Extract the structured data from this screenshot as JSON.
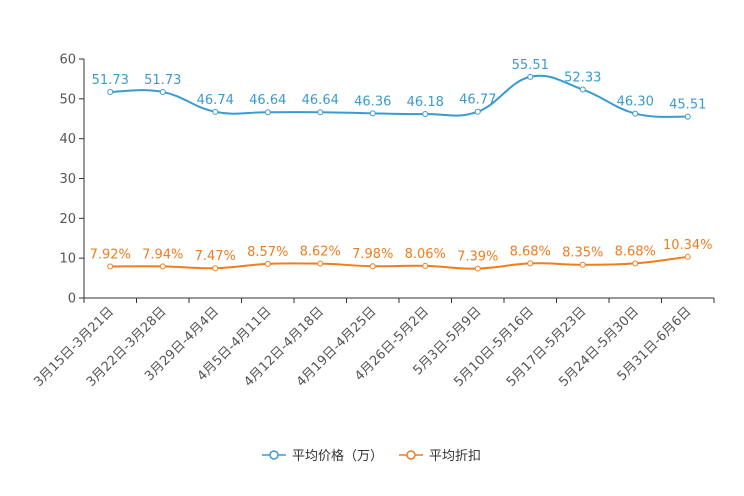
{
  "chart_data": {
    "type": "line",
    "title": "",
    "xlabel": "",
    "ylabel": "",
    "ylim": [
      0,
      60
    ],
    "yticks": [
      0,
      10,
      20,
      30,
      40,
      50,
      60
    ],
    "grid": false,
    "legend_position": "bottom",
    "categories": [
      "3月15日-3月21日",
      "3月22日-3月28日",
      "3月29日-4月4日",
      "4月5日-4月11日",
      "4月12日-4月18日",
      "4月19日-4月25日",
      "4月26日-5月2日",
      "5月3日-5月9日",
      "5月10日-5月16日",
      "5月17日-5月23日",
      "5月24日-5月30日",
      "5月31日-6月6日"
    ],
    "series": [
      {
        "name": "平均价格（万）",
        "color": "#3a9bd1",
        "values": [
          51.73,
          51.73,
          46.74,
          46.64,
          46.64,
          46.36,
          46.18,
          46.77,
          55.51,
          52.33,
          46.3,
          45.51
        ],
        "labels": [
          "51.73",
          "51.73",
          "46.74",
          "46.64",
          "46.64",
          "46.36",
          "46.18",
          "46.77",
          "55.51",
          "52.33",
          "46.30",
          "45.51"
        ]
      },
      {
        "name": "平均折扣",
        "color": "#f07d1e",
        "values": [
          7.92,
          7.94,
          7.47,
          8.57,
          8.62,
          7.98,
          8.06,
          7.39,
          8.68,
          8.35,
          8.68,
          10.34
        ],
        "labels": [
          "7.92%",
          "7.94%",
          "7.47%",
          "8.57%",
          "8.62%",
          "7.98%",
          "8.06%",
          "7.39%",
          "8.68%",
          "8.35%",
          "8.68%",
          "10.34%"
        ]
      }
    ]
  }
}
